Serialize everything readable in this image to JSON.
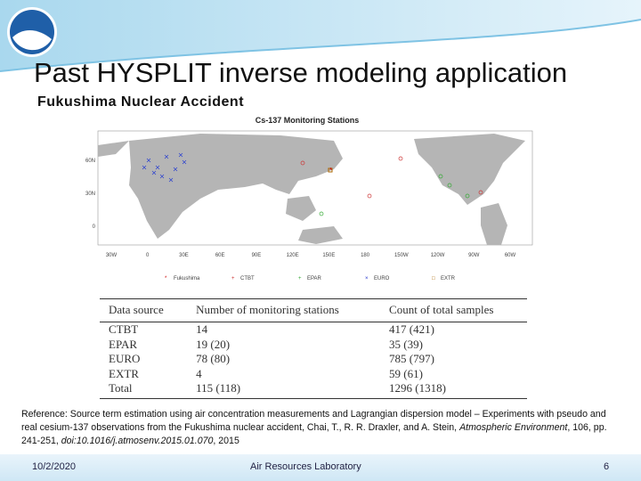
{
  "header": {
    "title": "Past HYSPLIT inverse modeling application",
    "subtitle": "Fukushima Nuclear Accident"
  },
  "figure": {
    "title": "Cs-137 Monitoring Stations",
    "lat_labels": [
      "60N",
      "30N",
      "0"
    ],
    "lon_labels": [
      "30W",
      "0",
      "30E",
      "60E",
      "90E",
      "120E",
      "150E",
      "180",
      "150W",
      "120W",
      "90W",
      "60W"
    ],
    "legend": [
      "Fukushima",
      "CTBT",
      "EPAR",
      "EURO",
      "EXTR"
    ]
  },
  "table": {
    "header": [
      "Data source",
      "Number of monitoring stations",
      "Count of total samples"
    ],
    "rows": [
      [
        "CTBT",
        "14",
        "417 (421)"
      ],
      [
        "EPAR",
        "19 (20)",
        "35 (39)"
      ],
      [
        "EURO",
        "78 (80)",
        "785 (797)"
      ],
      [
        "EXTR",
        "4",
        "59 (61)"
      ],
      [
        "Total",
        "115 (118)",
        "1296 (1318)"
      ]
    ]
  },
  "reference": [
    "Reference: Source term estimation using air concentration measurements and Lagrangian dispersion model – Experiments with pseudo and real cesium-137 observations from the Fukushima nuclear accident, Chai, T., R. R. Draxler, and A. Stein, ",
    "Atmospheric Environment",
    ", 106, pp. 241-251, ",
    "doi:10.1016/j.atmosenv.2015.01.070",
    ", 2015"
  ],
  "footer": {
    "date": "10/2/2020",
    "organization": "Air Resources Laboratory",
    "page": "6"
  }
}
